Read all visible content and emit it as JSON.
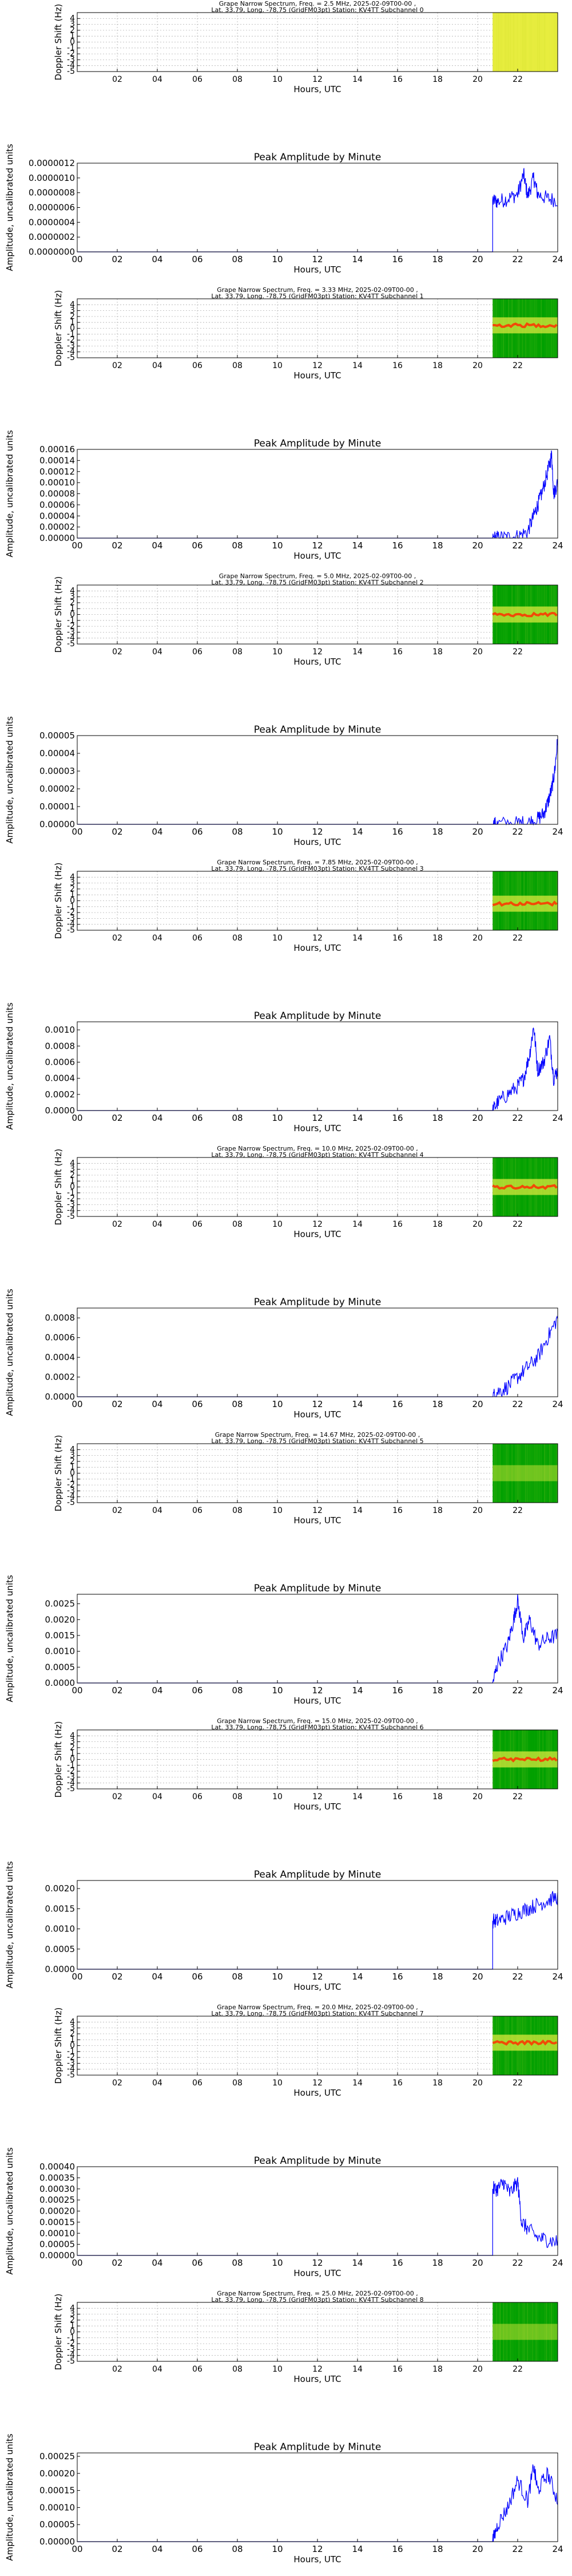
{
  "colors": {
    "line": "#0000ff",
    "grid": "#b0b0b0",
    "spectro_bg": "#00a000",
    "spectro_hi": "#e8ee40",
    "spectro_peak": "#ff3000"
  },
  "spectrum_common": {
    "ylabel": "Doppler Shift (Hz)",
    "xlabel": "Hours, UTC",
    "subtitle": "Lat.  33.79, Long. -78.75 (GridFM03pt) Station: KV4TT Subchannel ",
    "yticks": [
      "-5",
      "-4",
      "-3",
      "-2",
      "-1",
      "0",
      "1",
      "2",
      "3",
      "4"
    ],
    "xticks": [
      "02",
      "04",
      "06",
      "08",
      "10",
      "12",
      "14",
      "16",
      "18",
      "20",
      "22"
    ]
  },
  "amplitude_common": {
    "title": "Peak Amplitude by Minute",
    "ylabel": "Amplitude, uncalibrated units",
    "xlabel": "Hours, UTC",
    "xticks": [
      "00",
      "02",
      "04",
      "06",
      "08",
      "10",
      "12",
      "14",
      "16",
      "18",
      "20",
      "22",
      "24"
    ]
  },
  "chart_data": [
    {
      "type": "heatmap",
      "subchannel": "0",
      "title": "Grape Narrow Spectrum, Freq. = 2.5 MHz, 2025-02-09T00-00 ,",
      "xlim": [
        0,
        24
      ],
      "ylim": [
        -5,
        5
      ],
      "data_start": 20.75,
      "peak_shift": null,
      "style": "flat-yellow"
    },
    {
      "type": "line",
      "subchannel": "0",
      "ytick_labels": [
        "0.0000000",
        "0.0000002",
        "0.0000004",
        "0.0000006",
        "0.0000008",
        "0.0000010",
        "0.0000012"
      ],
      "ylim": [
        0,
        1.2e-06
      ],
      "xlim": [
        0,
        24
      ],
      "onset": 20.75,
      "step": 7e-07,
      "points": [
        [
          21.0,
          6.8e-07
        ],
        [
          21.5,
          7.2e-07
        ],
        [
          22.0,
          7.8e-07
        ],
        [
          22.3,
          1.05e-06
        ],
        [
          22.5,
          7.5e-07
        ],
        [
          22.8,
          1e-06
        ],
        [
          23.0,
          7.8e-07
        ],
        [
          23.5,
          7.2e-07
        ],
        [
          24.0,
          7e-07
        ]
      ]
    },
    {
      "type": "heatmap",
      "subchannel": "1",
      "title": "Grape Narrow Spectrum, Freq. = 3.33 MHz, 2025-02-09T00-00 ,",
      "xlim": [
        0,
        24
      ],
      "ylim": [
        -5,
        5
      ],
      "data_start": 20.75,
      "peak_shift": 0.5,
      "style": "green-band"
    },
    {
      "type": "line",
      "subchannel": "1",
      "ytick_labels": [
        "0.00000",
        "0.00002",
        "0.00004",
        "0.00006",
        "0.00008",
        "0.00010",
        "0.00012",
        "0.00014",
        "0.00016"
      ],
      "ylim": [
        0,
        0.00016
      ],
      "xlim": [
        0,
        24
      ],
      "onset": 20.75,
      "step": 0.0,
      "points": [
        [
          21.0,
          5e-07
        ],
        [
          21.5,
          1e-06
        ],
        [
          22.0,
          3e-06
        ],
        [
          22.5,
          1.2e-05
        ],
        [
          22.8,
          4e-05
        ],
        [
          23.0,
          6e-05
        ],
        [
          23.2,
          8e-05
        ],
        [
          23.5,
          0.00012
        ],
        [
          23.7,
          0.00015
        ],
        [
          23.8,
          8e-05
        ],
        [
          24.0,
          0.0001
        ]
      ]
    },
    {
      "type": "heatmap",
      "subchannel": "2",
      "title": "Grape Narrow Spectrum, Freq. = 5.0 MHz, 2025-02-09T00-00 ,",
      "xlim": [
        0,
        24
      ],
      "ylim": [
        -5,
        5
      ],
      "data_start": 20.75,
      "peak_shift": 0.0,
      "style": "green-band"
    },
    {
      "type": "line",
      "subchannel": "2",
      "ytick_labels": [
        "0.00000",
        "0.00001",
        "0.00002",
        "0.00003",
        "0.00004",
        "0.00005"
      ],
      "ylim": [
        0,
        5e-05
      ],
      "xlim": [
        0,
        24
      ],
      "onset": 20.75,
      "step": 0.0,
      "points": [
        [
          21.0,
          1e-07
        ],
        [
          22.0,
          5e-07
        ],
        [
          22.5,
          1e-06
        ],
        [
          23.0,
          3e-06
        ],
        [
          23.3,
          6e-06
        ],
        [
          23.5,
          1.2e-05
        ],
        [
          23.7,
          2e-05
        ],
        [
          23.85,
          3e-05
        ],
        [
          24.0,
          4.8e-05
        ]
      ]
    },
    {
      "type": "heatmap",
      "subchannel": "3",
      "title": "Grape Narrow Spectrum, Freq. = 7.85 MHz, 2025-02-09T00-00 ,",
      "xlim": [
        0,
        24
      ],
      "ylim": [
        -5,
        5
      ],
      "data_start": 20.75,
      "peak_shift": -0.5,
      "style": "green-band"
    },
    {
      "type": "line",
      "subchannel": "3",
      "ytick_labels": [
        "0.0000",
        "0.0002",
        "0.0004",
        "0.0006",
        "0.0008",
        "0.0010"
      ],
      "ylim": [
        0,
        0.0011
      ],
      "xlim": [
        0,
        24
      ],
      "onset": 20.75,
      "step": 0.0,
      "points": [
        [
          21.0,
          0.0001
        ],
        [
          21.5,
          0.0002
        ],
        [
          22.0,
          0.0003
        ],
        [
          22.3,
          0.0004
        ],
        [
          22.6,
          0.0007
        ],
        [
          22.8,
          0.00105
        ],
        [
          23.0,
          0.0005
        ],
        [
          23.3,
          0.0006
        ],
        [
          23.6,
          0.0009
        ],
        [
          23.8,
          0.0004
        ],
        [
          24.0,
          0.0005
        ]
      ]
    },
    {
      "type": "heatmap",
      "subchannel": "4",
      "title": "Grape Narrow Spectrum, Freq. = 10.0 MHz, 2025-02-09T00-00 ,",
      "xlim": [
        0,
        24
      ],
      "ylim": [
        -5,
        5
      ],
      "data_start": 20.75,
      "peak_shift": 0.0,
      "style": "green-band"
    },
    {
      "type": "line",
      "subchannel": "4",
      "ytick_labels": [
        "0.0000",
        "0.0002",
        "0.0004",
        "0.0006",
        "0.0008"
      ],
      "ylim": [
        0,
        0.0009
      ],
      "xlim": [
        0,
        24
      ],
      "onset": 20.75,
      "step": 0.0,
      "points": [
        [
          21.0,
          5e-05
        ],
        [
          21.5,
          0.0001
        ],
        [
          22.0,
          0.0002
        ],
        [
          22.5,
          0.0003
        ],
        [
          23.0,
          0.0004
        ],
        [
          23.5,
          0.0006
        ],
        [
          24.0,
          0.0008
        ]
      ]
    },
    {
      "type": "heatmap",
      "subchannel": "5",
      "title": "Grape Narrow Spectrum, Freq. = 14.67 MHz, 2025-02-09T00-00 ,",
      "xlim": [
        0,
        24
      ],
      "ylim": [
        -5,
        5
      ],
      "data_start": 20.75,
      "peak_shift": 0.0,
      "style": "green-faint"
    },
    {
      "type": "line",
      "subchannel": "5",
      "ytick_labels": [
        "0.0000",
        "0.0005",
        "0.0010",
        "0.0015",
        "0.0020",
        "0.0025"
      ],
      "ylim": [
        0,
        0.0028
      ],
      "xlim": [
        0,
        24
      ],
      "onset": 20.75,
      "step": 0.0,
      "points": [
        [
          21.0,
          0.0006
        ],
        [
          21.5,
          0.0012
        ],
        [
          21.8,
          0.002
        ],
        [
          22.0,
          0.0026
        ],
        [
          22.3,
          0.0014
        ],
        [
          22.6,
          0.002
        ],
        [
          23.0,
          0.0012
        ],
        [
          23.5,
          0.0014
        ],
        [
          24.0,
          0.0015
        ]
      ]
    },
    {
      "type": "heatmap",
      "subchannel": "6",
      "title": "Grape Narrow Spectrum, Freq. = 15.0 MHz, 2025-02-09T00-00 ,",
      "xlim": [
        0,
        24
      ],
      "ylim": [
        -5,
        5
      ],
      "data_start": 20.75,
      "peak_shift": 0.0,
      "style": "green-band"
    },
    {
      "type": "line",
      "subchannel": "6",
      "ytick_labels": [
        "0.0000",
        "0.0005",
        "0.0010",
        "0.0015",
        "0.0020"
      ],
      "ylim": [
        0,
        0.0022
      ],
      "xlim": [
        0,
        24
      ],
      "onset": 20.75,
      "step": 0.0012,
      "points": [
        [
          21.0,
          0.0012
        ],
        [
          21.5,
          0.0013
        ],
        [
          22.0,
          0.0014
        ],
        [
          22.5,
          0.0015
        ],
        [
          23.0,
          0.0016
        ],
        [
          23.5,
          0.0017
        ],
        [
          24.0,
          0.0018
        ]
      ]
    },
    {
      "type": "heatmap",
      "subchannel": "7",
      "title": "Grape Narrow Spectrum, Freq. = 20.0 MHz, 2025-02-09T00-00 ,",
      "xlim": [
        0,
        24
      ],
      "ylim": [
        -5,
        5
      ],
      "data_start": 20.75,
      "peak_shift": 0.5,
      "style": "green-band"
    },
    {
      "type": "line",
      "subchannel": "7",
      "ytick_labels": [
        "0.00000",
        "0.00005",
        "0.00010",
        "0.00015",
        "0.00020",
        "0.00025",
        "0.00030",
        "0.00035",
        "0.00040"
      ],
      "ylim": [
        0,
        0.0004
      ],
      "xlim": [
        0,
        24
      ],
      "onset": 20.75,
      "step": 0.0003,
      "points": [
        [
          21.0,
          0.0003
        ],
        [
          21.3,
          0.00033
        ],
        [
          21.6,
          0.00028
        ],
        [
          22.0,
          0.00033
        ],
        [
          22.2,
          0.00015
        ],
        [
          22.5,
          0.00012
        ],
        [
          23.0,
          8e-05
        ],
        [
          23.5,
          7e-05
        ],
        [
          24.0,
          6e-05
        ]
      ]
    },
    {
      "type": "heatmap",
      "subchannel": "8",
      "title": "Grape Narrow Spectrum, Freq. = 25.0 MHz, 2025-02-09T00-00 ,",
      "xlim": [
        0,
        24
      ],
      "ylim": [
        -5,
        5
      ],
      "data_start": 20.75,
      "peak_shift": 0.0,
      "style": "green-faint"
    },
    {
      "type": "line",
      "subchannel": "8",
      "ytick_labels": [
        "0.00000",
        "0.00005",
        "0.00010",
        "0.00015",
        "0.00020",
        "0.00025"
      ],
      "ylim": [
        0,
        0.00026
      ],
      "xlim": [
        0,
        24
      ],
      "onset": 20.75,
      "step": 0.0,
      "points": [
        [
          21.0,
          5e-05
        ],
        [
          21.5,
          0.0001
        ],
        [
          22.0,
          0.00018
        ],
        [
          22.5,
          0.00012
        ],
        [
          22.8,
          0.00022
        ],
        [
          23.0,
          0.00015
        ],
        [
          23.5,
          0.0002
        ],
        [
          24.0,
          0.00012
        ]
      ]
    }
  ]
}
